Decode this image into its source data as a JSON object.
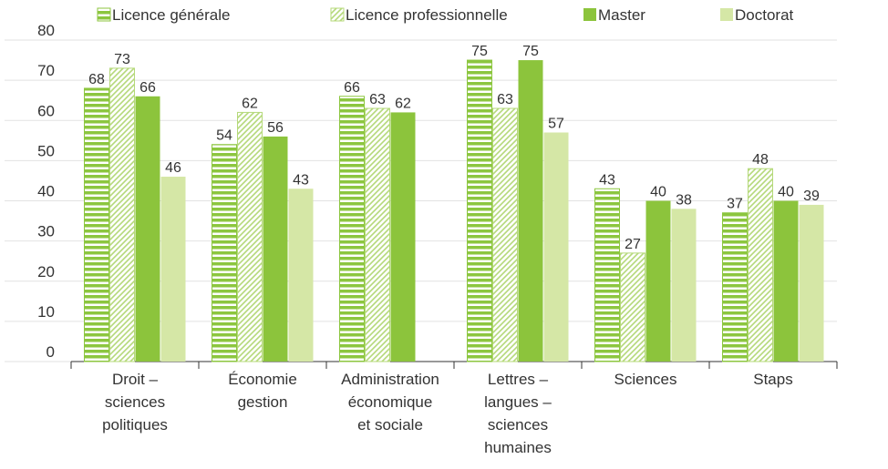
{
  "chart_data": {
    "type": "bar",
    "categories": [
      "Droit –\nsciences\npolitiques",
      "Économie\ngestion",
      "Administration\néconomique\net sociale",
      "Lettres –\nlangues –\nsciences\nhumaines",
      "Sciences",
      "Staps"
    ],
    "series": [
      {
        "name": "Licence générale",
        "color": "#8cc63f",
        "pattern": "horizontal",
        "values": [
          68,
          54,
          66,
          75,
          43,
          37
        ]
      },
      {
        "name": "Licence professionnelle",
        "color": "#b5d97a",
        "pattern": "diagonal",
        "values": [
          73,
          62,
          63,
          63,
          27,
          48
        ]
      },
      {
        "name": "Master",
        "color": "#8cc43c",
        "pattern": "solid",
        "values": [
          66,
          56,
          62,
          75,
          40,
          40
        ]
      },
      {
        "name": "Doctorat",
        "color": "#d5e7a6",
        "pattern": "solid",
        "values": [
          46,
          43,
          null,
          57,
          38,
          39
        ]
      }
    ],
    "ylim": [
      0,
      80
    ],
    "yticks": [
      0,
      10,
      20,
      30,
      40,
      50,
      60,
      70,
      80
    ],
    "grid": true,
    "legend": "top"
  }
}
